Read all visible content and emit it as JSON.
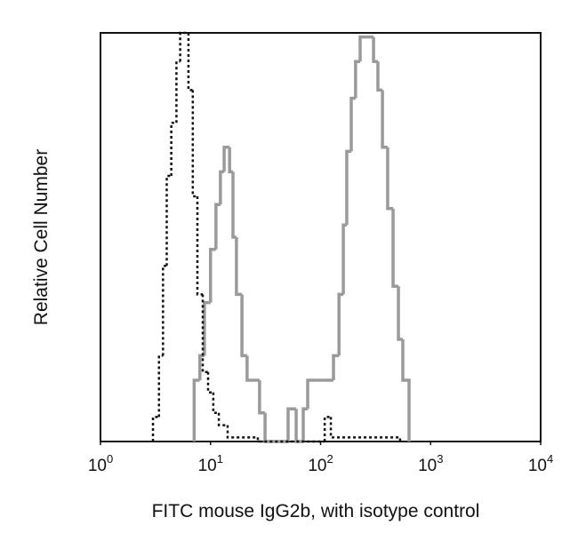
{
  "chart_data": {
    "type": "histogram",
    "xlabel": "FITC mouse IgG2b, with isotype control",
    "ylabel": "Relative Cell Number",
    "xscale": "log",
    "xlim": [
      1,
      10000
    ],
    "ylim": [
      0,
      100
    ],
    "xticks": [
      {
        "value": 1,
        "label": "10",
        "sup": "0"
      },
      {
        "value": 10,
        "label": "10",
        "sup": "1"
      },
      {
        "value": 100,
        "label": "10",
        "sup": "2"
      },
      {
        "value": 1000,
        "label": "10",
        "sup": "3"
      },
      {
        "value": 10000,
        "label": "10",
        "sup": "4"
      }
    ],
    "series": [
      {
        "color": "#9a9a9a",
        "dash": false,
        "bins": [
          7.1,
          8,
          8.8,
          10,
          11.2,
          12.3,
          13.3,
          14.9,
          16,
          17.2,
          19.3,
          21.5,
          27.9,
          31.3,
          50.7,
          60,
          69.6,
          76.4,
          131,
          147,
          161,
          173,
          190,
          208,
          229,
          303,
          332,
          365,
          407,
          456,
          510,
          559,
          637
        ],
        "values": [
          15,
          21,
          34,
          47,
          58,
          66,
          72,
          66,
          50,
          36,
          21,
          15,
          7,
          0,
          8,
          0,
          8,
          15,
          21,
          36,
          53,
          71,
          84,
          93,
          99,
          93,
          86,
          72,
          57,
          38,
          25,
          15
        ]
      },
      {
        "color": "#111111",
        "dash": true,
        "bins": [
          3.0,
          3.4,
          3.7,
          4.0,
          4.4,
          4.9,
          5.3,
          6.3,
          6.9,
          7.6,
          8.5,
          9.5,
          10.6,
          11.9,
          14.3,
          26.9,
          109,
          124,
          528
        ],
        "values": [
          6,
          21,
          43,
          65,
          78,
          93,
          100,
          86,
          60,
          36,
          17,
          12,
          7,
          4,
          1,
          0,
          6,
          1
        ]
      }
    ]
  }
}
